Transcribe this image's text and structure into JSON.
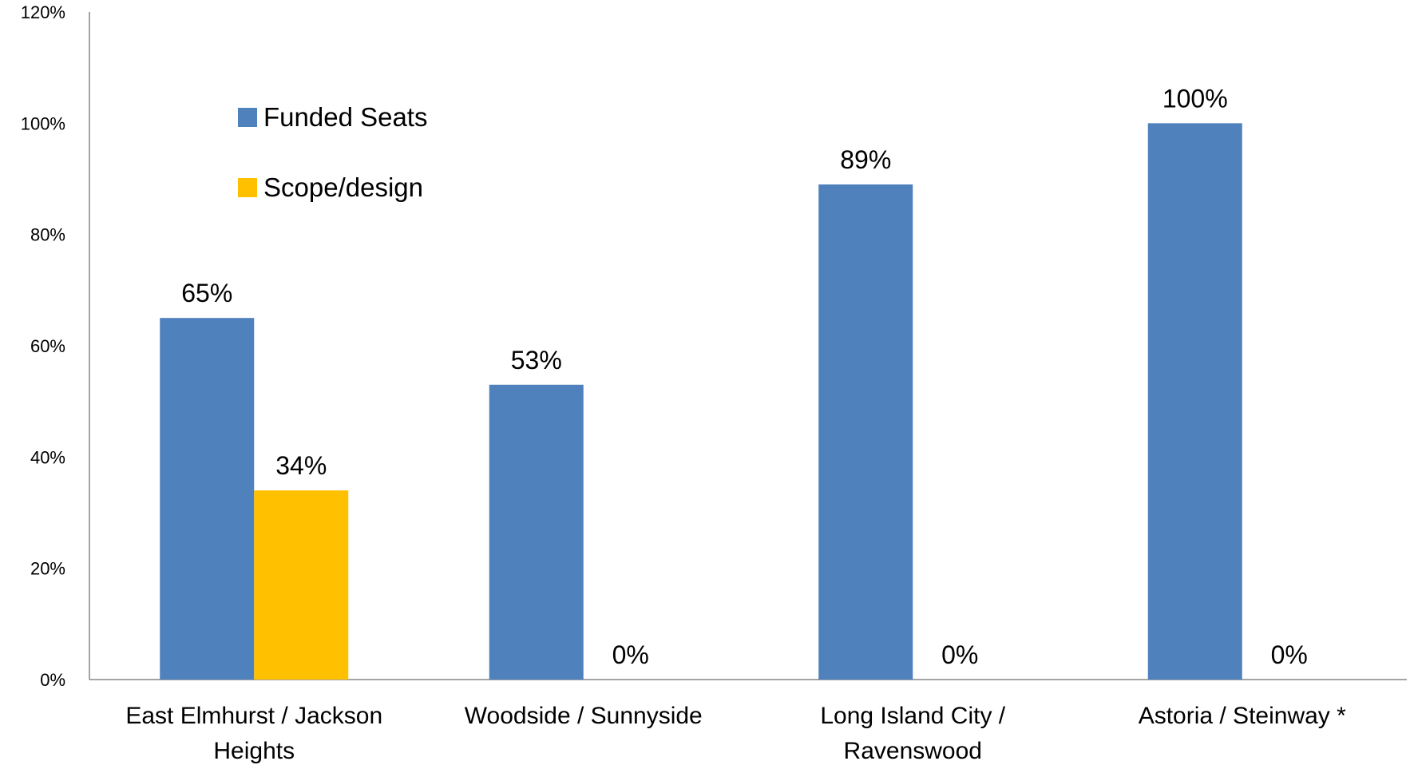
{
  "chart_data": {
    "type": "bar",
    "categories": [
      [
        "East Elmhurst / Jackson",
        "Heights"
      ],
      [
        "Woodside / Sunnyside"
      ],
      [
        "Long Island City /",
        "Ravenswood"
      ],
      [
        "Astoria / Steinway *"
      ]
    ],
    "series": [
      {
        "name": "Funded Seats",
        "values": [
          65,
          53,
          89,
          100
        ],
        "labels": [
          "65%",
          "53%",
          "89%",
          "100%"
        ],
        "color": "#4F81BD"
      },
      {
        "name": "Scope/design",
        "values": [
          34,
          0,
          0,
          0
        ],
        "labels": [
          "34%",
          "0%",
          "0%",
          "0%"
        ],
        "color": "#FFC000"
      }
    ],
    "y_ticks": [
      0,
      20,
      40,
      60,
      80,
      100,
      120
    ],
    "y_tick_labels": [
      "0%",
      "20%",
      "40%",
      "60%",
      "80%",
      "100%",
      "120%"
    ],
    "ylim": [
      0,
      120
    ],
    "grid": false,
    "legend_position": "upper-left"
  }
}
